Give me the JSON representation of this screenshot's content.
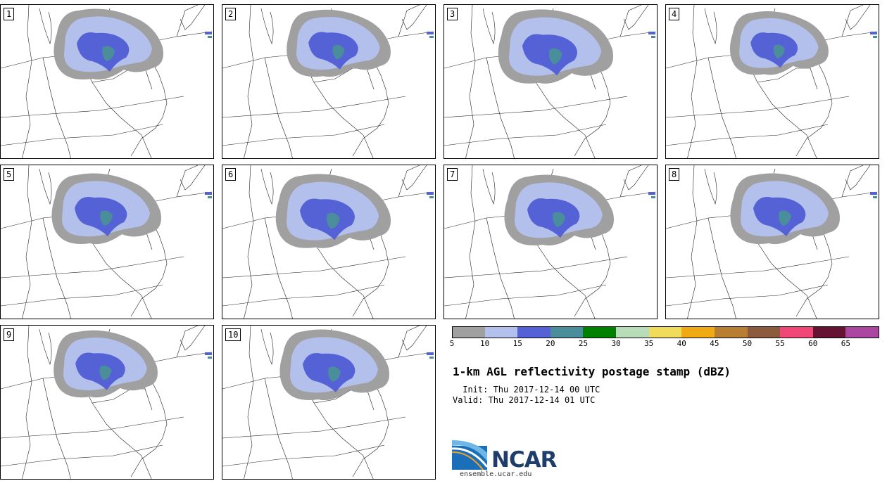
{
  "members": [
    {
      "label": "1"
    },
    {
      "label": "2"
    },
    {
      "label": "3"
    },
    {
      "label": "4"
    },
    {
      "label": "5"
    },
    {
      "label": "6"
    },
    {
      "label": "7"
    },
    {
      "label": "8"
    },
    {
      "label": "9"
    },
    {
      "label": "10"
    }
  ],
  "colorbar": {
    "ticks": [
      "5",
      "10",
      "15",
      "20",
      "25",
      "30",
      "35",
      "40",
      "45",
      "50",
      "55",
      "60",
      "65"
    ],
    "colors": [
      "#a0a0a0",
      "#b4c0ec",
      "#5462d6",
      "#4a8e9c",
      "#008000",
      "#b8dcb8",
      "#f0dc5a",
      "#f0aa14",
      "#b87e32",
      "#8c5a3c",
      "#f04678",
      "#641432",
      "#aa46a0"
    ]
  },
  "title": "1-km AGL reflectivity postage stamp (dBZ)",
  "init": " Init: Thu 2017-12-14 00 UTC",
  "valid": "Valid: Thu 2017-12-14 01 UTC",
  "logo": {
    "text": "NCAR",
    "url": "ensemble.ucar.edu"
  }
}
